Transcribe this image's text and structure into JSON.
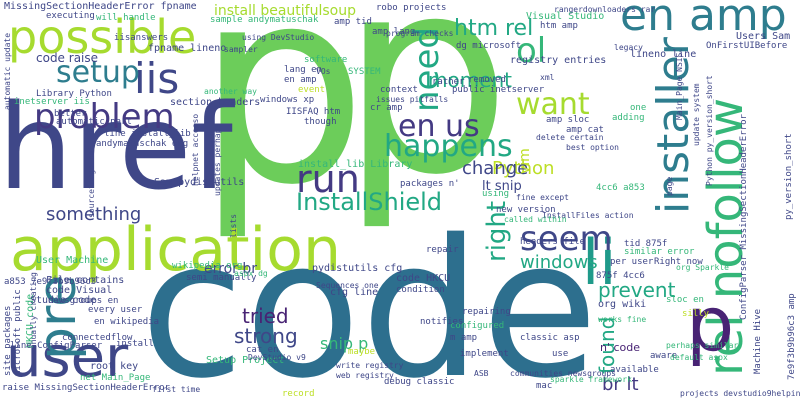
{
  "palette": {
    "background": "#ffffff",
    "colors": [
      "#2d6f8e",
      "#6ccd5a",
      "#a6db2f",
      "#2e7d8e",
      "#3f4788",
      "#1f9a8a",
      "#22a884",
      "#35b779",
      "#443a83",
      "#26828e",
      "#482374",
      "#bddf26"
    ]
  },
  "words": [
    {
      "text": "p",
      "color": "#6ccd5a"
    },
    {
      "text": "p",
      "color": "#6ccd5a"
    },
    {
      "text": "code",
      "color": "#2d6f8e"
    },
    {
      "text": "href",
      "color": "#3f4788"
    },
    {
      "text": "application",
      "color": "#a6db2f"
    },
    {
      "text": "user",
      "color": "#3f4788"
    },
    {
      "text": "possible",
      "color": "#a6db2f"
    },
    {
      "text": "en amp",
      "color": "#2e7d8e"
    },
    {
      "text": "installer",
      "color": "#2e7d8e"
    },
    {
      "text": "rel nofollow",
      "color": "#35b779"
    },
    {
      "text": "pre",
      "color": "#2e7d8e"
    },
    {
      "text": "li",
      "color": "#1f9a8a"
    },
    {
      "text": "p",
      "color": "#482374"
    },
    {
      "text": "problem",
      "color": "#443a83"
    },
    {
      "text": "iis",
      "color": "#3f4788"
    },
    {
      "text": "setup",
      "color": "#2e7d8e"
    },
    {
      "text": "happens",
      "color": "#22a884"
    },
    {
      "text": "en us",
      "color": "#443a83"
    },
    {
      "text": "run",
      "color": "#443a83"
    },
    {
      "text": "need",
      "color": "#22a884"
    },
    {
      "text": "want",
      "color": "#a6db2f"
    },
    {
      "text": "ol",
      "color": "#35b779"
    },
    {
      "text": "seem",
      "color": "#3f4788"
    },
    {
      "text": "InstallShield",
      "color": "#22a884"
    },
    {
      "text": "right",
      "color": "#22a884"
    },
    {
      "text": "htm rel",
      "color": "#22a884"
    },
    {
      "text": "moment",
      "color": "#22a884"
    },
    {
      "text": "something",
      "color": "#3f4788"
    },
    {
      "text": "tried",
      "color": "#482374"
    },
    {
      "text": "strong",
      "color": "#3f4788"
    },
    {
      "text": "windows",
      "color": "#22a884"
    },
    {
      "text": "prevent",
      "color": "#22a884"
    },
    {
      "text": "found",
      "color": "#22a884"
    },
    {
      "text": "br lt",
      "color": "#443a83"
    },
    {
      "text": "Python",
      "color": "#bddf26"
    },
    {
      "text": "change",
      "color": "#3f4788"
    },
    {
      "text": "snip p",
      "color": "#35b779"
    },
    {
      "text": "error br",
      "color": "#3f4788"
    },
    {
      "text": "install beautifulsoup",
      "color": "#a6db2f"
    },
    {
      "text": "code raise",
      "color": "#3f4788"
    },
    {
      "text": "lt snip",
      "color": "#3f4788"
    },
    {
      "text": "vim",
      "color": "#bddf26"
    },
    {
      "text": "n' code",
      "color": "#482374"
    },
    {
      "text": "pydistutils cfg",
      "color": "#3f4788"
    },
    {
      "text": "MissingSectionHeaderError fpname",
      "color": "#3f4788"
    },
    {
      "text": "registry entries",
      "color": "#3f4788"
    },
    {
      "text": "lineno line",
      "color": "#3f4788"
    },
    {
      "text": "Users Sam",
      "color": "#3f4788"
    },
    {
      "text": "OnFirstUIBefore",
      "color": "#3f4788"
    },
    {
      "text": "Machine Hive",
      "color": "#3f4788"
    },
    {
      "text": "7e9f3b9b96c3 amp",
      "color": "#3f4788"
    },
    {
      "text": "ConfigParser MissingSectionHeaderError",
      "color": "#3f4788"
    },
    {
      "text": "update system",
      "color": "#3f4788"
    },
    {
      "text": "Python py_version_short",
      "color": "#3f4788"
    },
    {
      "text": "py_version_short",
      "color": "#3f4788"
    },
    {
      "text": "Studio code",
      "color": "#3f4788"
    },
    {
      "text": "User Machine",
      "color": "#35b779"
    },
    {
      "text": "a853 7e9f3b9b96c3",
      "color": "#3f4788"
    },
    {
      "text": "File contains",
      "color": "#3f4788"
    },
    {
      "text": "code Visual",
      "color": "#3f4788"
    },
    {
      "text": "newsgroups en",
      "color": "#3f4788"
    },
    {
      "text": "site packages",
      "color": "#3f4788"
    },
    {
      "text": "microsoft public",
      "color": "#3f4788"
    },
    {
      "text": "HKCU code",
      "color": "#35b779"
    },
    {
      "text": "line ConfigParser",
      "color": "#3f4788"
    },
    {
      "text": "raise MissingSectionHeaderError",
      "color": "#3f4788"
    },
    {
      "text": "net Main_Page",
      "color": "#35b779"
    },
    {
      "text": "root key",
      "color": "#3f4788"
    },
    {
      "text": "Setup Project",
      "color": "#35b779"
    },
    {
      "text": "cfg line",
      "color": "#3f4788"
    },
    {
      "text": "code HKCU",
      "color": "#3f4788"
    },
    {
      "text": "org wiki",
      "color": "#3f4788"
    },
    {
      "text": "en wikipedia",
      "color": "#3f4788"
    },
    {
      "text": "every user",
      "color": "#3f4788"
    },
    {
      "text": "wikipedia org",
      "color": "#35b779"
    },
    {
      "text": "Sam pydistutils",
      "color": "#3f4788"
    },
    {
      "text": "section headers",
      "color": "#3f4788"
    },
    {
      "text": "line install_lib",
      "color": "#3f4788"
    },
    {
      "text": "install_lib Library",
      "color": "#35b779"
    },
    {
      "text": "Library Python",
      "color": "#3f4788"
    },
    {
      "text": "fpname lineno",
      "color": "#3f4788"
    },
    {
      "text": "Visual Studio",
      "color": "#35b779"
    },
    {
      "text": "htm amp",
      "color": "#3f4788"
    },
    {
      "text": "amp lang",
      "color": "#3f4788"
    },
    {
      "text": "dg microsoft",
      "color": "#3f4788"
    },
    {
      "text": "windows xp",
      "color": "#3f4788"
    },
    {
      "text": "IISFAQ htm",
      "color": "#3f4788"
    },
    {
      "text": "lang en",
      "color": "#3f4788"
    },
    {
      "text": "en amp",
      "color": "#3f4788"
    },
    {
      "text": "cr amp",
      "color": "#3f4788"
    },
    {
      "text": "amp sloc",
      "color": "#3f4788"
    },
    {
      "text": "amp cat",
      "color": "#3f4788"
    },
    {
      "text": "headers file",
      "color": "#3f4788"
    },
    {
      "text": "similar error",
      "color": "#35b779"
    },
    {
      "text": "per user",
      "color": "#3f4788"
    },
    {
      "text": "Right now",
      "color": "#3f4788"
    },
    {
      "text": "tid 875f",
      "color": "#3f4788"
    },
    {
      "text": "875f 4cc6",
      "color": "#3f4788"
    },
    {
      "text": "sloc en",
      "color": "#35b779"
    },
    {
      "text": "available",
      "color": "#3f4788"
    },
    {
      "text": "debug classic",
      "color": "#3f4788"
    },
    {
      "text": "communities newsgroups",
      "color": "#3f4788"
    },
    {
      "text": "configured",
      "color": "#35b779"
    },
    {
      "text": "m amp",
      "color": "#3f4788"
    },
    {
      "text": "implement",
      "color": "#3f4788"
    },
    {
      "text": "repairing",
      "color": "#3f4788"
    },
    {
      "text": "classic asp",
      "color": "#3f4788"
    },
    {
      "text": "cat en",
      "color": "#3f4788"
    },
    {
      "text": "connectedflow",
      "color": "#3f4788"
    },
    {
      "text": "manually creating",
      "color": "#3f4788"
    },
    {
      "text": "sourceforge net",
      "color": "#3f4788"
    },
    {
      "text": "iisanswers",
      "color": "#3f4788"
    },
    {
      "text": "executing",
      "color": "#3f4788"
    },
    {
      "text": "SYSTEM",
      "color": "#35b779"
    },
    {
      "text": "software",
      "color": "#35b779"
    },
    {
      "text": "public inetserver",
      "color": "#3f4788"
    },
    {
      "text": "removed",
      "color": "#3f4788"
    },
    {
      "text": "rather",
      "color": "#3f4788"
    },
    {
      "text": "context",
      "color": "#3f4788"
    },
    {
      "text": "event",
      "color": "#bddf26"
    },
    {
      "text": "though",
      "color": "#3f4788"
    },
    {
      "text": "adding",
      "color": "#35b779"
    },
    {
      "text": "one",
      "color": "#35b779"
    },
    {
      "text": "maybe",
      "color": "#bddf26"
    },
    {
      "text": "mac",
      "color": "#3f4788"
    },
    {
      "text": "record",
      "color": "#bddf26"
    },
    {
      "text": "use",
      "color": "#3f4788"
    },
    {
      "text": "install",
      "color": "#3f4788"
    },
    {
      "text": "aware",
      "color": "#3f4788"
    },
    {
      "text": "repair",
      "color": "#3f4788"
    },
    {
      "text": "using",
      "color": "#35b779"
    },
    {
      "text": "condition",
      "color": "#3f4788"
    },
    {
      "text": "notifies",
      "color": "#3f4788"
    },
    {
      "text": "silly",
      "color": "#bddf26"
    },
    {
      "text": "better",
      "color": "#3f4788"
    },
    {
      "text": "automatic part",
      "color": "#3f4788"
    },
    {
      "text": "automatic update",
      "color": "#3f4788"
    },
    {
      "text": "inetserver iis",
      "color": "#35b779"
    },
    {
      "text": "will handle",
      "color": "#35b779"
    },
    {
      "text": "amp tid",
      "color": "#3f4788"
    },
    {
      "text": "robo projects",
      "color": "#3f4788"
    },
    {
      "text": "sample andymatuschak",
      "color": "#35b779"
    },
    {
      "text": "andymatuschak org",
      "color": "#3f4788"
    },
    {
      "text": "packages n'",
      "color": "#3f4788"
    },
    {
      "text": "semi manually",
      "color": "#3f4788"
    },
    {
      "text": "updates perhaps",
      "color": "#3f4788"
    },
    {
      "text": "lists",
      "color": "#3f4788"
    },
    {
      "text": "new version",
      "color": "#3f4788"
    },
    {
      "text": "InstallFiles action",
      "color": "#3f4788"
    },
    {
      "text": "called within",
      "color": "#35b779"
    },
    {
      "text": "fine except",
      "color": "#3f4788"
    },
    {
      "text": "delete certain",
      "color": "#3f4788"
    },
    {
      "text": "4cc6 a853",
      "color": "#35b779"
    },
    {
      "text": "page",
      "color": "#3f4788"
    },
    {
      "text": "Main_Page NSIS",
      "color": "#3f4788"
    },
    {
      "text": "org Sparkle",
      "color": "#35b779"
    },
    {
      "text": "perhaps similar",
      "color": "#35b779"
    },
    {
      "text": "works fine",
      "color": "#35b779"
    },
    {
      "text": "default aspx",
      "color": "#35b779"
    },
    {
      "text": "aspx dg",
      "color": "#35b779"
    },
    {
      "text": "issues pitfalls",
      "color": "#3f4788"
    },
    {
      "text": "program checks",
      "color": "#3f4788"
    },
    {
      "text": "using DevStudio",
      "color": "#3f4788"
    },
    {
      "text": "DevStudio v9",
      "color": "#3f4788"
    },
    {
      "text": "sparkle framework",
      "color": "#35b779"
    },
    {
      "text": "first time",
      "color": "#3f4788"
    },
    {
      "text": "projects devstudio9helpingref",
      "color": "#3f4788"
    },
    {
      "text": "helpnet accesso",
      "color": "#3f4788"
    },
    {
      "text": "rangerdownloaders rar",
      "color": "#3f4788"
    },
    {
      "text": "best option",
      "color": "#3f4788"
    },
    {
      "text": "legacy",
      "color": "#3f4788"
    },
    {
      "text": "Sequences one",
      "color": "#3f4788"
    },
    {
      "text": "VOs",
      "color": "#3f4788"
    },
    {
      "text": "another way",
      "color": "#35b779"
    },
    {
      "text": "sampler",
      "color": "#3f4788"
    },
    {
      "text": "xml",
      "color": "#3f4788"
    },
    {
      "text": "web registry",
      "color": "#3f4788"
    },
    {
      "text": "write registry",
      "color": "#3f4788"
    },
    {
      "text": "ASB",
      "color": "#3f4788"
    }
  ]
}
